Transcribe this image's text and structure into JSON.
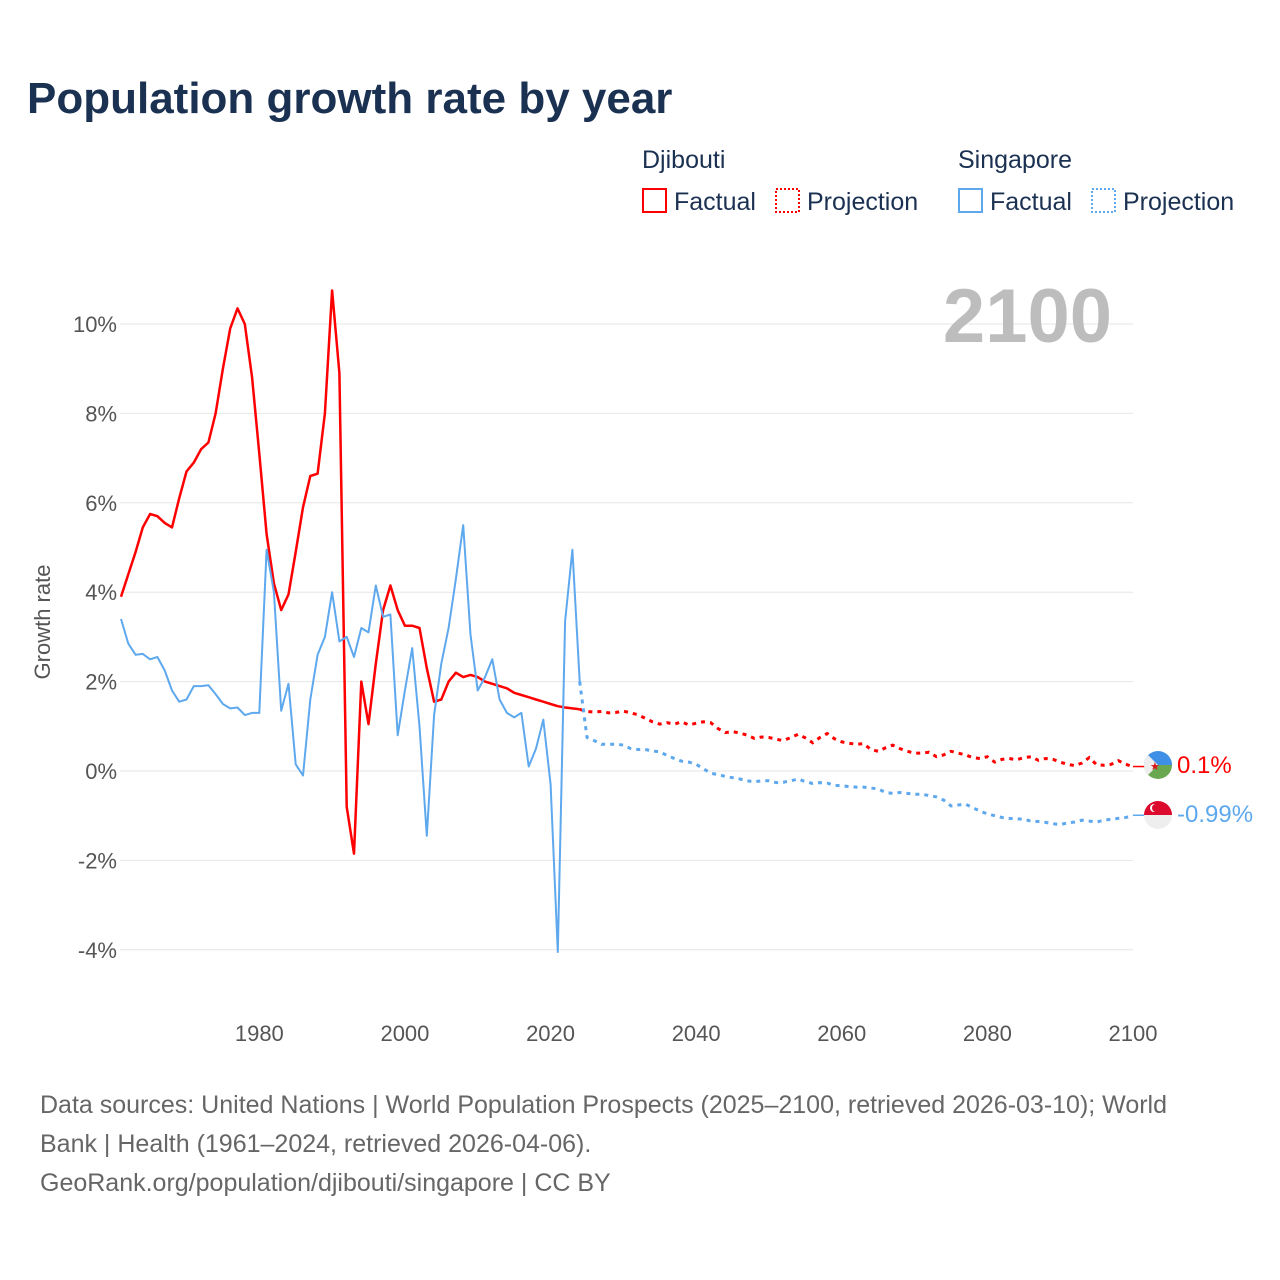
{
  "title": "Population growth rate by year",
  "year_display": "2100",
  "legend": {
    "groups": [
      {
        "country": "Djibouti",
        "factual": "Factual",
        "projection": "Projection",
        "color": "#ff0000"
      },
      {
        "country": "Singapore",
        "factual": "Factual",
        "projection": "Projection",
        "color": "#5ea8ee"
      }
    ]
  },
  "end_labels": {
    "djibouti": "0.1%",
    "singapore": "-0.99%"
  },
  "footer": {
    "line1": "Data sources: United Nations | World Population Prospects (2025–2100, retrieved 2026-03-10); World",
    "line2": "Bank | Health (1961–2024, retrieved 2026-04-06).",
    "line3": "GeoRank.org/population/djibouti/singapore | CC BY"
  },
  "chart_data": {
    "type": "line",
    "title": "Population growth rate by year",
    "xlabel": "",
    "ylabel": "Growth rate",
    "xlim": [
      1961,
      2100
    ],
    "ylim": [
      -5,
      11
    ],
    "x_ticks": [
      1980,
      2000,
      2020,
      2040,
      2060,
      2080,
      2100
    ],
    "x_tick_labels": [
      "1980",
      "2000",
      "2020",
      "2040",
      "2060",
      "2080",
      "2100"
    ],
    "y_ticks": [
      -4,
      -2,
      0,
      2,
      4,
      6,
      8,
      10
    ],
    "y_tick_labels": [
      "-4%",
      "-2%",
      "0%",
      "2%",
      "4%",
      "6%",
      "8%",
      "10%"
    ],
    "grid": true,
    "legend_position": "top-right",
    "factual_start": 1961,
    "projection_start": 2025,
    "series": [
      {
        "name": "Djibouti",
        "color": "#ff0000",
        "factual": [
          3.9,
          4.4,
          4.9,
          5.45,
          5.75,
          5.7,
          5.55,
          5.45,
          6.1,
          6.7,
          6.9,
          7.2,
          7.35,
          8.0,
          9.0,
          9.9,
          10.35,
          10.0,
          8.8,
          7.1,
          5.3,
          4.2,
          3.6,
          3.95,
          4.9,
          5.9,
          6.6,
          6.65,
          8.0,
          10.75,
          8.9,
          -0.8,
          -1.85,
          2.0,
          1.05,
          2.4,
          3.6,
          4.15,
          3.6,
          3.25,
          3.25,
          3.2,
          2.3,
          1.55,
          1.6,
          2.0,
          2.2,
          2.1,
          2.15,
          2.1,
          2.0,
          1.95,
          1.9,
          1.85,
          1.75,
          1.7,
          1.65,
          1.6,
          1.55,
          1.5,
          1.45,
          1.42,
          1.4,
          1.38
        ],
        "projection": [
          1.33,
          1.32,
          1.33,
          1.3,
          1.31,
          1.34,
          1.3,
          1.26,
          1.18,
          1.1,
          1.05,
          1.08,
          1.05,
          1.1,
          1.03,
          1.07,
          1.1,
          1.08,
          0.95,
          0.86,
          0.88,
          0.85,
          0.8,
          0.73,
          0.76,
          0.75,
          0.71,
          0.68,
          0.75,
          0.82,
          0.74,
          0.63,
          0.75,
          0.84,
          0.72,
          0.65,
          0.62,
          0.6,
          0.61,
          0.48,
          0.44,
          0.52,
          0.58,
          0.5,
          0.44,
          0.4,
          0.4,
          0.42,
          0.32,
          0.36,
          0.44,
          0.4,
          0.36,
          0.3,
          0.28,
          0.32,
          0.2,
          0.26,
          0.28,
          0.25,
          0.3,
          0.32,
          0.24,
          0.28,
          0.26,
          0.2,
          0.15,
          0.12,
          0.18,
          0.3,
          0.14,
          0.13,
          0.15,
          0.23,
          0.15,
          0.1
        ]
      },
      {
        "name": "Singapore",
        "color": "#5ea8ee",
        "factual": [
          3.4,
          2.85,
          2.6,
          2.62,
          2.5,
          2.55,
          2.25,
          1.8,
          1.55,
          1.6,
          1.9,
          1.9,
          1.92,
          1.72,
          1.5,
          1.4,
          1.42,
          1.25,
          1.3,
          1.3,
          4.95,
          4.0,
          1.35,
          1.95,
          0.15,
          -0.1,
          1.6,
          2.6,
          3.0,
          4.0,
          2.9,
          3.0,
          2.55,
          3.2,
          3.1,
          4.15,
          3.45,
          3.5,
          0.8,
          1.8,
          2.75,
          1.0,
          -1.45,
          1.25,
          2.4,
          3.2,
          4.3,
          5.5,
          3.05,
          1.8,
          2.1,
          2.5,
          1.6,
          1.3,
          1.2,
          1.3,
          0.1,
          0.5,
          1.15,
          -0.3,
          -4.05,
          3.35,
          4.95,
          2.0
        ],
        "projection": [
          0.75,
          0.68,
          0.6,
          0.6,
          0.6,
          0.58,
          0.5,
          0.48,
          0.48,
          0.45,
          0.43,
          0.35,
          0.28,
          0.22,
          0.2,
          0.15,
          0.05,
          -0.05,
          -0.08,
          -0.12,
          -0.15,
          -0.18,
          -0.22,
          -0.24,
          -0.22,
          -0.22,
          -0.26,
          -0.25,
          -0.22,
          -0.18,
          -0.24,
          -0.28,
          -0.26,
          -0.27,
          -0.32,
          -0.33,
          -0.35,
          -0.36,
          -0.36,
          -0.38,
          -0.4,
          -0.48,
          -0.5,
          -0.48,
          -0.5,
          -0.52,
          -0.52,
          -0.55,
          -0.58,
          -0.65,
          -0.78,
          -0.76,
          -0.74,
          -0.82,
          -0.9,
          -0.96,
          -1.0,
          -1.04,
          -1.06,
          -1.07,
          -1.08,
          -1.12,
          -1.13,
          -1.15,
          -1.18,
          -1.2,
          -1.16,
          -1.14,
          -1.1,
          -1.12,
          -1.14,
          -1.1,
          -1.08,
          -1.06,
          -1.04,
          -0.99
        ]
      }
    ]
  }
}
